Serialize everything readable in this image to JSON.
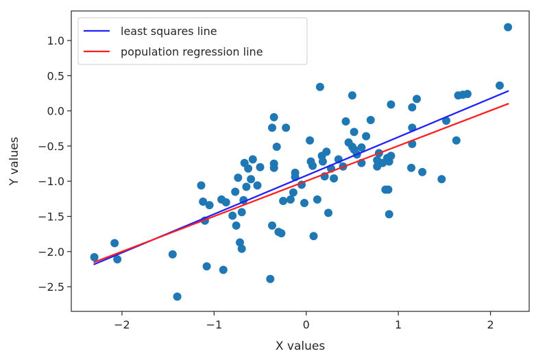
{
  "chart_data": {
    "type": "scatter",
    "title": "",
    "xlabel": "X values",
    "ylabel": "Y values",
    "xlim": [
      -2.55,
      2.42
    ],
    "ylim": [
      -2.85,
      1.42
    ],
    "xticks": [
      -2,
      -1,
      0,
      1,
      2
    ],
    "yticks": [
      1.0,
      0.5,
      0.0,
      -0.5,
      -1.0,
      -1.5,
      -2.0,
      -2.5
    ],
    "grid": false,
    "legend_position": "top-left",
    "points": {
      "color": "#1f77b4",
      "x": [
        2.19,
        2.1,
        1.75,
        1.7,
        1.65,
        1.63,
        1.52,
        1.47,
        1.26,
        1.2,
        1.15,
        1.15,
        1.15,
        1.14,
        0.92,
        0.92,
        0.9,
        0.9,
        0.89,
        0.88,
        0.86,
        0.83,
        0.79,
        0.77,
        0.77,
        0.7,
        0.65,
        0.6,
        0.6,
        0.55,
        0.52,
        0.52,
        0.5,
        0.5,
        0.46,
        0.43,
        0.4,
        0.35,
        0.3,
        0.27,
        0.24,
        0.22,
        0.2,
        0.18,
        0.17,
        0.15,
        0.12,
        0.08,
        0.07,
        0.05,
        0.04,
        -0.02,
        -0.05,
        -0.12,
        -0.12,
        -0.14,
        -0.17,
        -0.22,
        -0.25,
        -0.27,
        -0.3,
        -0.32,
        -0.35,
        -0.35,
        -0.35,
        -0.37,
        -0.37,
        -0.39,
        -0.5,
        -0.53,
        -0.58,
        -0.6,
        -0.63,
        -0.65,
        -0.67,
        -0.68,
        -0.7,
        -0.7,
        -0.72,
        -0.74,
        -0.76,
        -0.77,
        -0.8,
        -0.87,
        -0.9,
        -0.92,
        -1.05,
        -1.08,
        -1.1,
        -1.12,
        -1.14,
        -1.4,
        -1.45,
        -2.05,
        -2.08,
        -2.3
      ],
      "y": [
        1.19,
        0.36,
        0.24,
        0.23,
        0.22,
        -0.42,
        -0.14,
        -0.97,
        -0.87,
        0.17,
        0.05,
        -0.24,
        -0.47,
        -0.81,
        0.09,
        -0.64,
        -1.47,
        -0.72,
        -1.12,
        -0.67,
        -1.12,
        -0.74,
        -0.6,
        -0.79,
        -0.7,
        -0.13,
        -0.36,
        -0.52,
        -0.74,
        -0.62,
        -0.3,
        -0.55,
        -0.51,
        0.22,
        -0.45,
        -0.15,
        -0.79,
        -0.69,
        -0.96,
        -0.82,
        -1.45,
        -0.58,
        -0.93,
        -0.72,
        -0.64,
        0.34,
        -1.26,
        -1.78,
        -0.78,
        -0.72,
        -0.42,
        -1.31,
        -1.05,
        -0.88,
        -0.94,
        -1.16,
        -1.26,
        -0.24,
        -1.28,
        -1.74,
        -1.72,
        -0.51,
        -0.81,
        -0.75,
        -0.09,
        -0.24,
        -1.63,
        -2.39,
        -0.8,
        -1.06,
        -0.69,
        -0.97,
        -0.82,
        -1.08,
        -0.74,
        -1.27,
        -1.96,
        -1.44,
        -1.87,
        -0.95,
        -1.63,
        -1.15,
        -1.49,
        -1.3,
        -2.26,
        -1.26,
        -1.34,
        -2.21,
        -1.56,
        -1.29,
        -1.06,
        -2.64,
        -2.04,
        -2.11,
        -1.88,
        -2.08
      ]
    },
    "series": [
      {
        "name": "least squares line",
        "color": "#1f1fff",
        "x": [
          -2.3,
          2.19
        ],
        "y": [
          -2.18,
          0.28
        ]
      },
      {
        "name": "population regression line",
        "color": "#ff1f1f",
        "x": [
          -2.3,
          2.19
        ],
        "y": [
          -2.15,
          0.1
        ]
      }
    ]
  }
}
